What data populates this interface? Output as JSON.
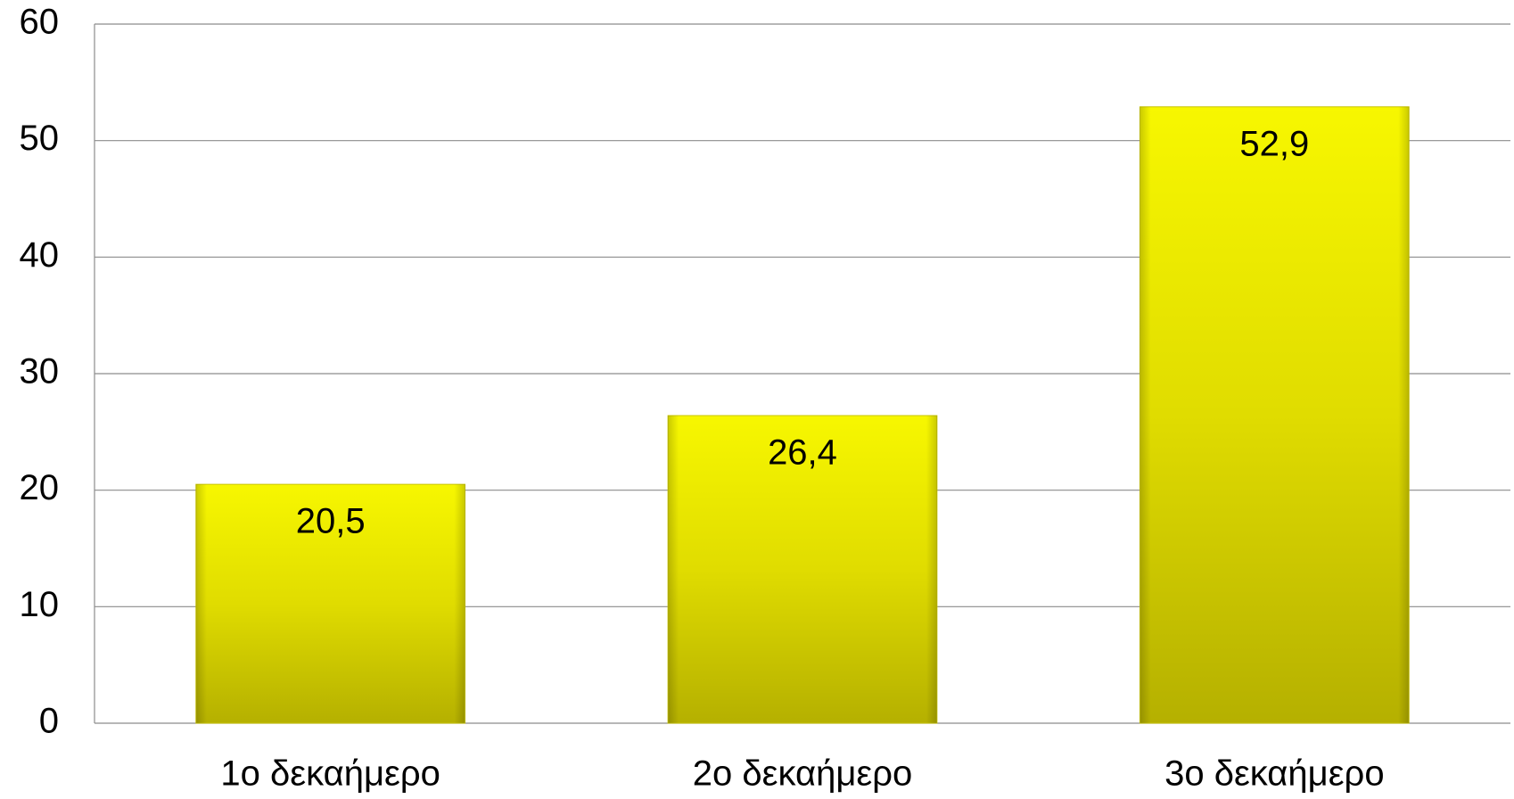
{
  "chart_data": {
    "type": "bar",
    "categories": [
      "1ο δεκαήμερο",
      "2ο δεκαήμερο",
      "3ο δεκαήμερο"
    ],
    "values": [
      20.5,
      26.4,
      52.9
    ],
    "value_labels": [
      "20,5",
      "26,4",
      "52,9"
    ],
    "color": "#e6e600",
    "ylim": [
      0,
      60
    ],
    "yticks": [
      0,
      10,
      20,
      30,
      40,
      50,
      60
    ],
    "grid": true
  }
}
